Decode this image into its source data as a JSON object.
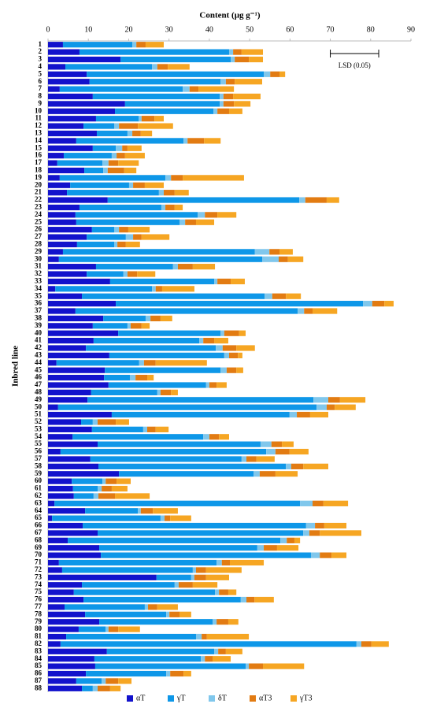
{
  "chart_data": {
    "type": "stacked_barh",
    "title": "Content (µg g⁻¹)",
    "y_label": "Inbred line",
    "categories": [
      "1",
      "2",
      "3",
      "4",
      "5",
      "6",
      "7",
      "8",
      "9",
      "10",
      "11",
      "12",
      "13",
      "14",
      "15",
      "16",
      "17",
      "18",
      "19",
      "20",
      "21",
      "22",
      "23",
      "24",
      "25",
      "26",
      "27",
      "28",
      "29",
      "30",
      "31",
      "32",
      "33",
      "34",
      "35",
      "36",
      "37",
      "38",
      "39",
      "40",
      "41",
      "42",
      "43",
      "44",
      "45",
      "46",
      "47",
      "48",
      "49",
      "50",
      "51",
      "52",
      "53",
      "54",
      "55",
      "56",
      "57",
      "58",
      "59",
      "60",
      "61",
      "62",
      "63",
      "64",
      "65",
      "66",
      "67",
      "68",
      "69",
      "70",
      "71",
      "72",
      "73",
      "74",
      "75",
      "76",
      "77",
      "78",
      "79",
      "80",
      "81",
      "82",
      "83",
      "84",
      "85",
      "86",
      "87",
      "88"
    ],
    "series": [
      {
        "name": "αT",
        "color": "#1212cc",
        "values": [
          3.7,
          7.8,
          18,
          4.3,
          9.6,
          10.3,
          2.9,
          11.1,
          19.1,
          16.6,
          11.9,
          8.8,
          12.1,
          7,
          11.1,
          3.9,
          2.3,
          9,
          2.9,
          5.5,
          4.7,
          14.8,
          7.8,
          6.8,
          7,
          10.9,
          9.6,
          7.2,
          3.7,
          2.7,
          11.9,
          9.6,
          15.4,
          1.8,
          8.4,
          16.8,
          6.8,
          13.7,
          11.1,
          17.4,
          11.3,
          9.4,
          15.2,
          2.1,
          14.1,
          13.9,
          15,
          10.7,
          9.8,
          2.5,
          15.8,
          8.2,
          10.9,
          6.1,
          12.3,
          3.1,
          10.5,
          12.5,
          17.6,
          5.9,
          6.2,
          6.4,
          1.6,
          9.2,
          1,
          8.6,
          12.3,
          4.9,
          12.7,
          13.1,
          2.7,
          3.5,
          26.9,
          8.4,
          6.4,
          8.8,
          4.1,
          9.2,
          12.7,
          7.6,
          4.5,
          3.1,
          14.6,
          11.5,
          11.7,
          9.4,
          7,
          8.4
        ]
      },
      {
        "name": "γT",
        "color": "#0e97e8",
        "values": [
          17.2,
          37.1,
          27.3,
          21.5,
          43.9,
          32.5,
          30.5,
          31.5,
          23.5,
          24.4,
          10.6,
          7.6,
          7.6,
          26.6,
          5.7,
          11.9,
          11.2,
          4.7,
          26.2,
          14.6,
          22.8,
          47.5,
          20.3,
          30.3,
          25.6,
          5.5,
          9.7,
          9.2,
          47.6,
          50.4,
          19.1,
          9.1,
          25.8,
          24,
          45.3,
          61.3,
          55.1,
          10.5,
          8.6,
          25.4,
          26.2,
          32.2,
          28.5,
          20.5,
          28.7,
          6.4,
          24.2,
          16.4,
          56,
          64.1,
          44.1,
          2.9,
          12.7,
          32.4,
          40.4,
          51,
          37.5,
          46.5,
          33.4,
          7.6,
          6.1,
          4.9,
          60.9,
          13.1,
          26.9,
          55.4,
          51,
          52.7,
          39.2,
          52.1,
          39.1,
          32.4,
          8.6,
          23,
          35,
          39,
          19.9,
          20.1,
          28.1,
          6.7,
          32.2,
          73.4,
          26.6,
          26.4,
          37.3,
          19.9,
          6.3,
          2.7
        ]
      },
      {
        "name": "δT",
        "color": "#80c7ec",
        "values": [
          1,
          1,
          1,
          1.3,
          1.6,
          1.3,
          1.7,
          0.9,
          0.9,
          1,
          0.7,
          1.2,
          1.2,
          1,
          1.6,
          1.2,
          1.5,
          1.1,
          1.4,
          1,
          1.2,
          1.5,
          1,
          1.8,
          1.4,
          1.2,
          1.8,
          0.8,
          3.6,
          4.1,
          1.2,
          1,
          0.8,
          0.9,
          1.9,
          2.3,
          1.6,
          1.2,
          0.8,
          0.9,
          1,
          1.7,
          1.2,
          1.2,
          1.5,
          1.4,
          0.8,
          0.8,
          3.7,
          2.5,
          1.8,
          1.2,
          1,
          1.5,
          2.7,
          2.3,
          1.2,
          1.3,
          1.5,
          0.8,
          1,
          1.2,
          3.1,
          0.7,
          1,
          2.2,
          1.5,
          1.6,
          1.6,
          2.2,
          1.3,
          0.8,
          0.8,
          1,
          1,
          1.4,
          0.8,
          0.8,
          1,
          0.7,
          1.4,
          1.2,
          1,
          1,
          0.8,
          1,
          1,
          1.2
        ]
      },
      {
        "name": "αT3",
        "color": "#e27b12",
        "values": [
          2.3,
          2.1,
          3.5,
          2.6,
          2.3,
          2.2,
          2.2,
          2.4,
          2.6,
          2.9,
          3.2,
          4.7,
          2.1,
          4.1,
          1.3,
          2.1,
          2.4,
          4.1,
          2.9,
          2.9,
          2.7,
          5.3,
          2.3,
          3.1,
          2.7,
          2.3,
          2.1,
          2.1,
          2.5,
          2.3,
          3.7,
          2.4,
          3.3,
          1.6,
          3.4,
          3,
          2.1,
          2.5,
          2.7,
          3.7,
          2.7,
          3.4,
          2.2,
          2.9,
          2.4,
          2.9,
          1.8,
          2.6,
          2.9,
          2,
          3.3,
          4.5,
          2.1,
          2.4,
          2.6,
          3.5,
          2.5,
          3,
          3.9,
          2.7,
          2.5,
          4.1,
          2.7,
          3,
          1.4,
          2.3,
          2.6,
          1.9,
          3.3,
          2.9,
          2,
          2.5,
          2.9,
          3.5,
          2.3,
          2,
          2.3,
          2.5,
          2.9,
          2.4,
          1.3,
          2.5,
          1.9,
          1.9,
          3.5,
          3.3,
          3.1,
          3.1
        ]
      },
      {
        "name": "γT3",
        "color": "#f6a623",
        "values": [
          4.5,
          5.3,
          3.5,
          5.4,
          1.4,
          6.8,
          8.8,
          6.8,
          4.1,
          3.3,
          2.3,
          8.7,
          2.8,
          4.1,
          3.5,
          4.9,
          5.1,
          3,
          15.2,
          4.7,
          3.5,
          3.1,
          2,
          4.7,
          4.5,
          5.3,
          6.9,
          3.5,
          3.3,
          3.8,
          5.5,
          4.5,
          3.5,
          8,
          3.7,
          2.3,
          6.1,
          2.9,
          2,
          1.6,
          3.5,
          4.6,
          1.1,
          12.7,
          1.7,
          1.6,
          2.5,
          1.7,
          6.3,
          5.2,
          4.5,
          3.3,
          3.2,
          2.5,
          2.9,
          4.7,
          4.5,
          6.2,
          5.5,
          3.5,
          3.9,
          8.6,
          6.1,
          6.2,
          5.2,
          5.5,
          10.3,
          1.4,
          5.3,
          3.7,
          8.4,
          8.8,
          5.7,
          6.1,
          2,
          4.8,
          5.1,
          2.9,
          2.5,
          5.4,
          10.4,
          4.3,
          4.1,
          4.5,
          10.2,
          1.9,
          3.3,
          2.6
        ]
      }
    ],
    "xlim": [
      0,
      90
    ],
    "xticks": [
      0,
      10,
      20,
      30,
      40,
      50,
      60,
      70,
      80,
      90
    ],
    "grid": false,
    "legend": "bottom",
    "lsd": {
      "label": "LSD (0.05)",
      "start": 70,
      "end": 82
    }
  }
}
